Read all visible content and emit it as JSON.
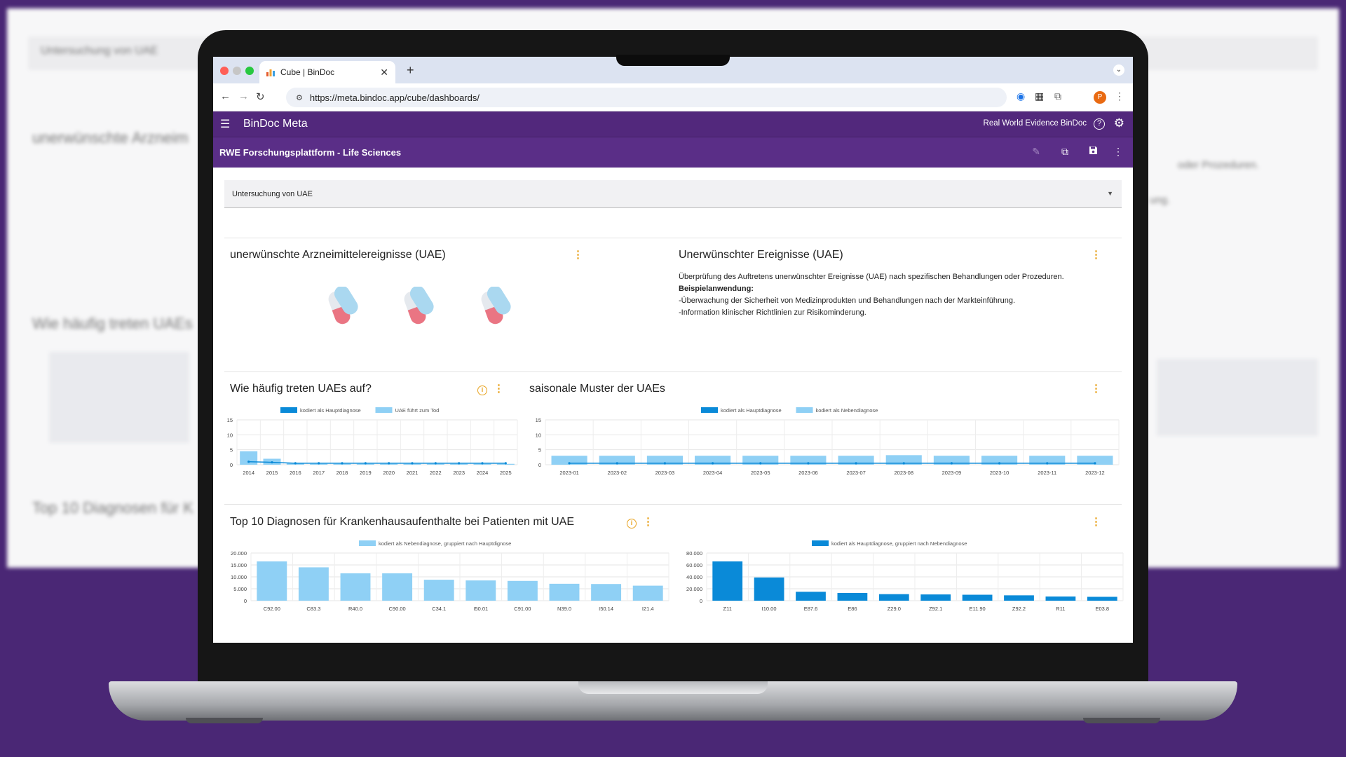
{
  "background": {
    "select_label": "Untersuchung von UAE",
    "title_1": "unerwünschte Arzneim",
    "title_2": "Wie häufig treten UAEs",
    "title_3": "Top 10 Diagnosen für K",
    "right_text_1": "oder Prozeduren.",
    "right_text_2": "ung."
  },
  "browser": {
    "tab_title": "Cube | BinDoc",
    "tab_icon": "bar-chart-favicon",
    "url": "https://meta.bindoc.app/cube/dashboards/",
    "avatar": "P"
  },
  "app": {
    "brand": "BinDoc Meta",
    "org": "Real World Evidence BinDoc",
    "dashboard_title": "RWE Forschungsplattform - Life Sciences"
  },
  "filter": {
    "selected": "Untersuchung von UAE"
  },
  "panels": {
    "uae_title": "unerwünschte Arzneimittelereignisse (UAE)",
    "events_title": "Unerwünschter Ereignisse (UAE)",
    "events_desc_line1": "Überprüfung des Auftretens unerwünschter Ereignisse (UAE) nach spezifischen Behandlungen oder Prozeduren.",
    "events_desc_heading": "Beispielanwendung:",
    "events_desc_line2": "-Überwachung der Sicherheit von Medizinprodukten und Behandlungen nach der Markteinführung.",
    "events_desc_line3": "-Information klinischer Richtlinien zur Risikominderung.",
    "freq_title": "Wie häufig treten UAEs auf?",
    "seasonal_title": "saisonale Muster der UAEs",
    "top10_title": "Top 10 Diagnosen für Krankenhausaufenthalte bei Patienten mit UAE"
  },
  "colors": {
    "primary": "#52287c",
    "accent": "#e8a21d",
    "series_dark": "#0a8ad8",
    "series_light": "#8fd0f5"
  },
  "chart_data": [
    {
      "type": "bar",
      "categories": [
        "2014",
        "2015",
        "2016",
        "2017",
        "2018",
        "2019",
        "2020",
        "2021",
        "2022",
        "2023",
        "2024",
        "2025"
      ],
      "series": [
        {
          "name": "kodiert als Hauptdiagnose",
          "type": "line",
          "values": [
            1,
            0.8,
            0.5,
            0.5,
            0.5,
            0.5,
            0.5,
            0.5,
            0.5,
            0.5,
            0.5,
            0.5
          ]
        },
        {
          "name": "UAE führt zum Tod",
          "type": "bar",
          "values": [
            4.5,
            2,
            0.5,
            0.3,
            0.3,
            0.3,
            0.3,
            0.3,
            0.3,
            0.3,
            0.3,
            0.3
          ]
        }
      ],
      "yticks": [
        0,
        5,
        10,
        15
      ],
      "ylim": [
        0,
        15
      ],
      "legend": "top"
    },
    {
      "type": "bar",
      "categories": [
        "2023-01",
        "2023-02",
        "2023-03",
        "2023-04",
        "2023-05",
        "2023-06",
        "2023-07",
        "2023-08",
        "2023-09",
        "2023-10",
        "2023-11",
        "2023-12"
      ],
      "series": [
        {
          "name": "kodiert als Hauptdiagnose",
          "type": "line",
          "values": [
            0.5,
            0.5,
            0.5,
            0.5,
            0.5,
            0.5,
            0.5,
            0.5,
            0.5,
            0.5,
            0.5,
            0.5
          ]
        },
        {
          "name": "kodiert als Nebendiagnose",
          "type": "bar",
          "values": [
            3,
            3,
            3,
            3,
            3,
            3,
            3,
            3.2,
            3,
            3,
            3,
            3
          ]
        }
      ],
      "yticks": [
        0,
        5,
        10,
        15
      ],
      "ylim": [
        0,
        15
      ],
      "legend": "top"
    },
    {
      "type": "bar",
      "categories": [
        "C92.00",
        "C83.3",
        "R40.0",
        "C90.00",
        "C34.1",
        "I50.01",
        "C91.00",
        "N39.0",
        "I50.14",
        "I21.4"
      ],
      "series": [
        {
          "name": "kodiert als Nebendiagnose, gruppiert nach Hauptdignose",
          "values": [
            16500,
            14000,
            11500,
            11500,
            8800,
            8500,
            8300,
            7100,
            7000,
            6300
          ]
        }
      ],
      "yticks": [
        "0",
        "5.000",
        "10.000",
        "15.000",
        "20.000"
      ],
      "ylim": [
        0,
        20000
      ],
      "legend": "top"
    },
    {
      "type": "bar",
      "categories": [
        "Z11",
        "I10.00",
        "E87.6",
        "E86",
        "Z29.0",
        "Z92.1",
        "E11.90",
        "Z92.2",
        "R11",
        "E03.8"
      ],
      "series": [
        {
          "name": "kodiert als Hauptdiagnose, gruppiert nach Nebendiagnose",
          "values": [
            66000,
            39000,
            15000,
            13000,
            11000,
            10500,
            10000,
            9000,
            7000,
            6500
          ]
        }
      ],
      "yticks": [
        "0",
        "20.000",
        "40.000",
        "60.000",
        "80.000"
      ],
      "ylim": [
        0,
        80000
      ],
      "legend": "top"
    }
  ]
}
